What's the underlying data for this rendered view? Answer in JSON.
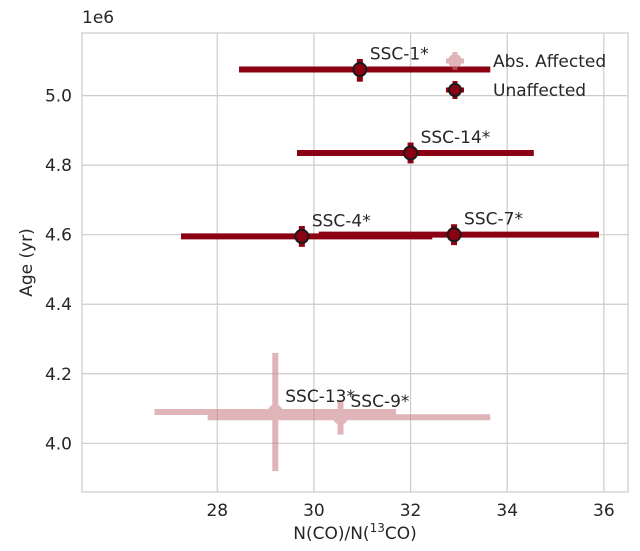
{
  "chart_data": {
    "type": "scatter",
    "xlabel_main": "N(CO)/N(",
    "xlabel_sup": "13",
    "xlabel_end": "CO)",
    "ylabel": "Age (yr)",
    "y_offset_label": "1e6",
    "xlim": [
      25.2,
      36.5
    ],
    "ylim": [
      3.86,
      5.18
    ],
    "xticks": [
      28,
      30,
      32,
      34,
      36
    ],
    "yticks": [
      4.0,
      4.2,
      4.4,
      4.6,
      4.8,
      5.0
    ],
    "xtick_labels": [
      "28",
      "30",
      "32",
      "34",
      "36"
    ],
    "ytick_labels": [
      "4.0",
      "4.2",
      "4.4",
      "4.6",
      "4.8",
      "5.0"
    ],
    "grid": true,
    "legend_position": "top-right",
    "series": [
      {
        "name": "Abs. Affected",
        "color": "#c77a82",
        "alpha": 0.55,
        "points": [
          {
            "label": "SSC-13*",
            "x": 29.2,
            "y": 4.09,
            "xerr": [
              26.7,
              31.7
            ],
            "yerr": [
              3.92,
              4.26
            ]
          },
          {
            "label": "SSC-9*",
            "x": 30.55,
            "y": 4.075,
            "xerr": [
              27.8,
              33.65
            ],
            "yerr": [
              4.025,
              4.125
            ]
          }
        ]
      },
      {
        "name": "Unaffected",
        "color": "#8b0012",
        "alpha": 1.0,
        "points": [
          {
            "label": "SSC-1*",
            "x": 30.95,
            "y": 5.075,
            "xerr": [
              28.45,
              33.65
            ],
            "yerr": [
              5.04,
              5.105
            ]
          },
          {
            "label": "SSC-14*",
            "x": 32.0,
            "y": 4.835,
            "xerr": [
              29.65,
              34.55
            ],
            "yerr": [
              4.805,
              4.865
            ]
          },
          {
            "label": "SSC-4*",
            "x": 29.75,
            "y": 4.595,
            "xerr": [
              27.25,
              32.45
            ],
            "yerr": [
              4.565,
              4.625
            ]
          },
          {
            "label": "SSC-7*",
            "x": 32.9,
            "y": 4.6,
            "xerr": [
              30.1,
              35.9
            ],
            "yerr": [
              4.57,
              4.63
            ]
          }
        ]
      }
    ]
  }
}
